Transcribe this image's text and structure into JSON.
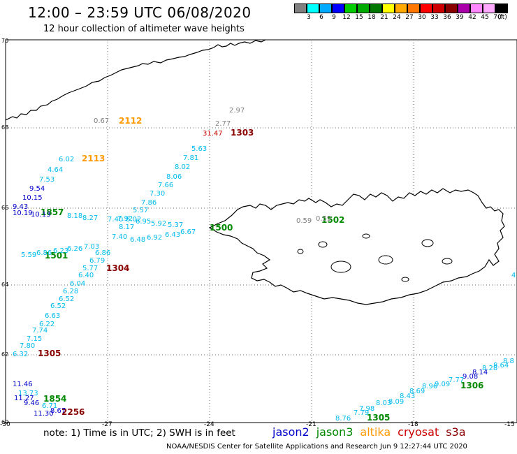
{
  "title": "12:00 – 23:59 UTC 06/08/2020",
  "subtitle": "12 hour collection of altimeter wave heights",
  "colorscale": {
    "colors": [
      "#808080",
      "#00ffff",
      "#00aaff",
      "#0000ff",
      "#00cc00",
      "#00aa00",
      "#007700",
      "#ffff00",
      "#ffaa00",
      "#ff7700",
      "#ff0000",
      "#cc0000",
      "#880000",
      "#aa00aa",
      "#ff88ff",
      "#ffaaff",
      "#000000"
    ],
    "labels": [
      "3",
      "6",
      "9",
      "12",
      "15",
      "18",
      "21",
      "24",
      "27",
      "30",
      "33",
      "36",
      "39",
      "42",
      "45",
      "70",
      "(ft)"
    ]
  },
  "lat_labels": [
    "70",
    "68",
    "66",
    "64",
    "62",
    "60"
  ],
  "lon_labels": [
    "-30",
    "-27",
    "-24",
    "-21",
    "-18",
    "-15"
  ],
  "note": "note:  1) Time is in UTC;  2) SWH is in feet",
  "satellites": [
    {
      "name": "jason2",
      "color": "#0000cc"
    },
    {
      "name": "jason3",
      "color": "#008800"
    },
    {
      "name": "altika",
      "color": "#ff9900"
    },
    {
      "name": "cryosat",
      "color": "#cc0000"
    },
    {
      "name": "s3a",
      "color": "#880000"
    }
  ],
  "footer": "NOAA/NESDIS Center for Satellite Applications and Research    Jun  9 12:27:44 UTC 2020",
  "time_labels": [
    {
      "text": "2112",
      "color": "#ff9900"
    },
    {
      "text": "2113",
      "color": "#ff9900"
    },
    {
      "text": "1303",
      "color": "#880000"
    },
    {
      "text": "1857",
      "color": "#008800"
    },
    {
      "text": "1501",
      "color": "#008800"
    },
    {
      "text": "1304",
      "color": "#880000"
    },
    {
      "text": "1305",
      "color": "#880000"
    },
    {
      "text": "1854",
      "color": "#008800"
    },
    {
      "text": "2256",
      "color": "#880000"
    },
    {
      "text": "1502",
      "color": "#008800"
    },
    {
      "text": "1500",
      "color": "#008800"
    },
    {
      "text": "1306",
      "color": "#008800"
    },
    {
      "text": "1305",
      "color": "#008800"
    }
  ],
  "wave_values": [
    {
      "text": "0.67",
      "color": "#808080"
    },
    {
      "text": "2.97",
      "color": "#808080"
    },
    {
      "text": "2.77",
      "color": "#808080"
    },
    {
      "text": "31.47",
      "color": "#cc0000"
    },
    {
      "text": "5.63",
      "color": "#00bbee"
    },
    {
      "text": "7.81",
      "color": "#00bbee"
    },
    {
      "text": "8.02",
      "color": "#00bbee"
    },
    {
      "text": "8.06",
      "color": "#00bbee"
    },
    {
      "text": "7.66",
      "color": "#00bbee"
    },
    {
      "text": "7.30",
      "color": "#00bbee"
    },
    {
      "text": "7.86",
      "color": "#00bbee"
    },
    {
      "text": "5.57",
      "color": "#00bbee"
    },
    {
      "text": "6.02",
      "color": "#00bbee"
    },
    {
      "text": "4.64",
      "color": "#00bbee"
    },
    {
      "text": "7.53",
      "color": "#00bbee"
    },
    {
      "text": "9.54",
      "color": "#0000cc"
    },
    {
      "text": "10.15",
      "color": "#0000cc"
    },
    {
      "text": "9.43",
      "color": "#0000cc"
    },
    {
      "text": "10.19",
      "color": "#0000cc"
    },
    {
      "text": "10.13",
      "color": "#0000cc"
    },
    {
      "text": "8.18",
      "color": "#00bbee"
    },
    {
      "text": "8.27",
      "color": "#00bbee"
    },
    {
      "text": "7.40",
      "color": "#00bbee"
    },
    {
      "text": "7.92",
      "color": "#00bbee"
    },
    {
      "text": "8.02",
      "color": "#00bbee"
    },
    {
      "text": "8.17",
      "color": "#00bbee"
    },
    {
      "text": "7.40",
      "color": "#00bbee"
    },
    {
      "text": "6.95",
      "color": "#00bbee"
    },
    {
      "text": "5.92",
      "color": "#00bbee"
    },
    {
      "text": "5.37",
      "color": "#00bbee"
    },
    {
      "text": "6.48",
      "color": "#00bbee"
    },
    {
      "text": "6.92",
      "color": "#00bbee"
    },
    {
      "text": "6.43",
      "color": "#00bbee"
    },
    {
      "text": "6.67",
      "color": "#00bbee"
    },
    {
      "text": "5.59",
      "color": "#00bbee"
    },
    {
      "text": "6.86",
      "color": "#00bbee"
    },
    {
      "text": "6.23",
      "color": "#00bbee"
    },
    {
      "text": "6.26",
      "color": "#00bbee"
    },
    {
      "text": "7.03",
      "color": "#00bbee"
    },
    {
      "text": "6.86",
      "color": "#00bbee"
    },
    {
      "text": "6.79",
      "color": "#00bbee"
    },
    {
      "text": "5.77",
      "color": "#00bbee"
    },
    {
      "text": "6.40",
      "color": "#00bbee"
    },
    {
      "text": "6.04",
      "color": "#00bbee"
    },
    {
      "text": "6.28",
      "color": "#00bbee"
    },
    {
      "text": "6.52",
      "color": "#00bbee"
    },
    {
      "text": "6.52",
      "color": "#00bbee"
    },
    {
      "text": "6.63",
      "color": "#00bbee"
    },
    {
      "text": "6.22",
      "color": "#00bbee"
    },
    {
      "text": "7.74",
      "color": "#00bbee"
    },
    {
      "text": "7.15",
      "color": "#00bbee"
    },
    {
      "text": "7.80",
      "color": "#00bbee"
    },
    {
      "text": "6.32",
      "color": "#00bbee"
    },
    {
      "text": "0.59",
      "color": "#808080"
    },
    {
      "text": "0.59",
      "color": "#808080"
    },
    {
      "text": "11.46",
      "color": "#0000cc"
    },
    {
      "text": "13.73",
      "color": "#00bbee"
    },
    {
      "text": "11.27",
      "color": "#0000cc"
    },
    {
      "text": "9.46",
      "color": "#0000cc"
    },
    {
      "text": "6.71",
      "color": "#00bbee"
    },
    {
      "text": "11.30",
      "color": "#0000cc"
    },
    {
      "text": "8.67",
      "color": "#0000cc"
    },
    {
      "text": "8.76",
      "color": "#00bbee"
    },
    {
      "text": "7.79",
      "color": "#00bbee"
    },
    {
      "text": "7.98",
      "color": "#00bbee"
    },
    {
      "text": "8.03",
      "color": "#00bbee"
    },
    {
      "text": "8.09",
      "color": "#00bbee"
    },
    {
      "text": "8.43",
      "color": "#00bbee"
    },
    {
      "text": "8.69",
      "color": "#00bbee"
    },
    {
      "text": "8.96",
      "color": "#00bbee"
    },
    {
      "text": "9.09",
      "color": "#00bbee"
    },
    {
      "text": "7.77",
      "color": "#00bbee"
    },
    {
      "text": "9.08",
      "color": "#0000cc"
    },
    {
      "text": "8.14",
      "color": "#0000cc"
    },
    {
      "text": "8.28",
      "color": "#00bbee"
    },
    {
      "text": "8.64",
      "color": "#00bbee"
    },
    {
      "text": "8.8",
      "color": "#00bbee"
    },
    {
      "text": "4",
      "color": "#00bbee"
    }
  ]
}
